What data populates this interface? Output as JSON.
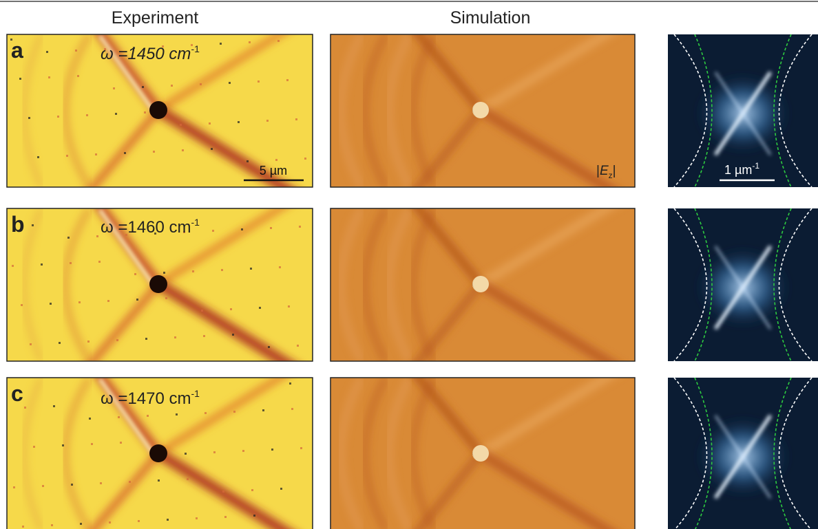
{
  "header": {
    "columns": [
      "Experiment",
      "Simulation"
    ]
  },
  "rows": [
    {
      "label": "a",
      "frequency": "ω =1450 cm",
      "unit_exponent": "-1"
    },
    {
      "label": "b",
      "frequency": "ω =1460 cm",
      "unit_exponent": "-1"
    },
    {
      "label": "c",
      "frequency": "ω =1470 cm",
      "unit_exponent": "-1"
    }
  ],
  "scale_bars": {
    "real_space": "5 µm",
    "momentum": "1 µm",
    "momentum_exponent": "-1"
  },
  "field_label": {
    "prefix": "|",
    "symbol": "E",
    "subscript": "z",
    "suffix": "|"
  }
}
